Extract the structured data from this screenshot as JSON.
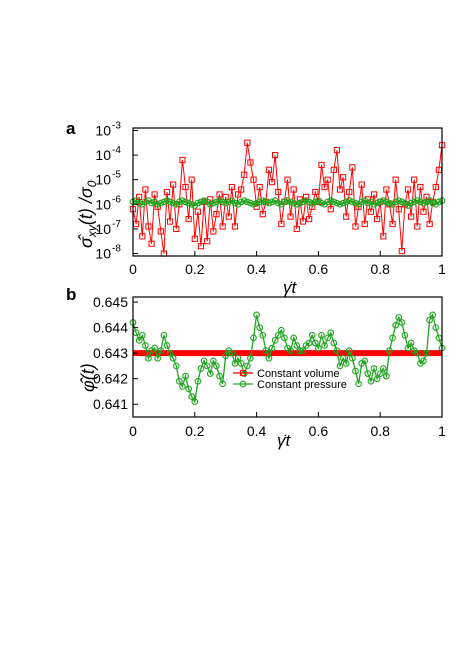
{
  "chart_data": [
    {
      "panel_label": "a",
      "type": "line",
      "xlabel": "γ̇t",
      "ylabel": "σ̂xy(t) /σ0",
      "ylabel_main": "σ̂",
      "ylabel_sub": "xy",
      "ylabel_mid": "(t) /σ",
      "ylabel_sub2": "0",
      "yscale": "log",
      "xlim": [
        0,
        1
      ],
      "ylim_exp": [
        -8.1,
        -2.9
      ],
      "xticks": [
        "0",
        "0.2",
        "0.4",
        "0.6",
        "0.8",
        "1"
      ],
      "ytick_base": "10",
      "yticks_exp": [
        "-8",
        "-7",
        "-6",
        "-5",
        "-4",
        "-3"
      ],
      "series": [
        {
          "name": "Constant volume",
          "color": "#ff0000",
          "marker": "square",
          "x": [
            0,
            0.01,
            0.02,
            0.03,
            0.04,
            0.05,
            0.06,
            0.07,
            0.08,
            0.09,
            0.1,
            0.11,
            0.12,
            0.13,
            0.14,
            0.15,
            0.16,
            0.17,
            0.18,
            0.19,
            0.2,
            0.21,
            0.22,
            0.23,
            0.24,
            0.25,
            0.26,
            0.27,
            0.28,
            0.29,
            0.3,
            0.31,
            0.32,
            0.33,
            0.34,
            0.35,
            0.36,
            0.37,
            0.38,
            0.39,
            0.4,
            0.41,
            0.42,
            0.43,
            0.44,
            0.45,
            0.46,
            0.47,
            0.48,
            0.49,
            0.5,
            0.51,
            0.52,
            0.53,
            0.54,
            0.55,
            0.56,
            0.57,
            0.58,
            0.59,
            0.6,
            0.61,
            0.62,
            0.63,
            0.64,
            0.65,
            0.66,
            0.67,
            0.68,
            0.69,
            0.7,
            0.71,
            0.72,
            0.73,
            0.74,
            0.75,
            0.76,
            0.77,
            0.78,
            0.79,
            0.8,
            0.81,
            0.82,
            0.83,
            0.84,
            0.85,
            0.86,
            0.87,
            0.88,
            0.89,
            0.9,
            0.91,
            0.92,
            0.93,
            0.94,
            0.95,
            0.96,
            0.97,
            0.98,
            0.99,
            1.0
          ],
          "y_log10": [
            -6.2,
            -6.8,
            -5.7,
            -7.3,
            -5.4,
            -6.9,
            -7.6,
            -5.6,
            -6.1,
            -7.1,
            -8.0,
            -5.5,
            -6.7,
            -5.2,
            -7.0,
            -6.0,
            -4.2,
            -5.3,
            -6.6,
            -5.0,
            -7.4,
            -6.3,
            -7.7,
            -5.9,
            -7.5,
            -5.8,
            -7.1,
            -6.4,
            -5.6,
            -6.9,
            -5.7,
            -6.5,
            -5.3,
            -6.9,
            -5.6,
            -5.4,
            -4.8,
            -3.5,
            -4.3,
            -5.0,
            -6.1,
            -5.3,
            -6.4,
            -5.9,
            -4.6,
            -5.1,
            -4.0,
            -5.5,
            -6.8,
            -5.9,
            -5.0,
            -6.5,
            -5.4,
            -7.0,
            -5.8,
            -6.7,
            -5.7,
            -6.6,
            -6.1,
            -5.5,
            -5.9,
            -4.4,
            -5.3,
            -5.0,
            -6.2,
            -4.6,
            -3.8,
            -5.4,
            -4.9,
            -6.5,
            -5.5,
            -4.5,
            -6.9,
            -6.1,
            -5.2,
            -6.8,
            -5.8,
            -6.3,
            -5.6,
            -6.6,
            -5.9,
            -7.3,
            -5.4,
            -6.0,
            -6.8,
            -5.0,
            -6.2,
            -7.9,
            -6.0,
            -5.4,
            -6.5,
            -5.0,
            -6.9,
            -5.3,
            -6.3,
            -5.7,
            -6.8,
            -5.9,
            -5.3,
            -4.6,
            -3.6
          ]
        },
        {
          "name": "Constant pressure",
          "color": "#1fa51f",
          "marker": "circle",
          "x": [
            0,
            0.01,
            0.02,
            0.03,
            0.04,
            0.05,
            0.06,
            0.07,
            0.08,
            0.09,
            0.1,
            0.11,
            0.12,
            0.13,
            0.14,
            0.15,
            0.16,
            0.17,
            0.18,
            0.19,
            0.2,
            0.21,
            0.22,
            0.23,
            0.24,
            0.25,
            0.26,
            0.27,
            0.28,
            0.29,
            0.3,
            0.31,
            0.32,
            0.33,
            0.34,
            0.35,
            0.36,
            0.37,
            0.38,
            0.39,
            0.4,
            0.41,
            0.42,
            0.43,
            0.44,
            0.45,
            0.46,
            0.47,
            0.48,
            0.49,
            0.5,
            0.51,
            0.52,
            0.53,
            0.54,
            0.55,
            0.56,
            0.57,
            0.58,
            0.59,
            0.6,
            0.61,
            0.62,
            0.63,
            0.64,
            0.65,
            0.66,
            0.67,
            0.68,
            0.69,
            0.7,
            0.71,
            0.72,
            0.73,
            0.74,
            0.75,
            0.76,
            0.77,
            0.78,
            0.79,
            0.8,
            0.81,
            0.82,
            0.83,
            0.84,
            0.85,
            0.86,
            0.87,
            0.88,
            0.89,
            0.9,
            0.91,
            0.92,
            0.93,
            0.94,
            0.95,
            0.96,
            0.97,
            0.98,
            0.99,
            1.0
          ],
          "y_log10": [
            -5.9,
            -5.85,
            -5.95,
            -6.0,
            -5.9,
            -5.85,
            -5.95,
            -5.9,
            -6.0,
            -5.95,
            -5.9,
            -5.85,
            -5.9,
            -5.95,
            -6.0,
            -5.9,
            -5.85,
            -5.9,
            -5.95,
            -6.0,
            -6.05,
            -5.95,
            -5.9,
            -5.85,
            -5.9,
            -6.0,
            -5.95,
            -5.9,
            -5.85,
            -5.9,
            -5.95,
            -5.9,
            -5.85,
            -5.95,
            -6.0,
            -5.9,
            -5.85,
            -5.9,
            -5.95,
            -6.0,
            -5.95,
            -5.9,
            -5.85,
            -5.9,
            -5.95,
            -5.9,
            -5.85,
            -5.95,
            -6.0,
            -5.9,
            -5.85,
            -5.9,
            -5.95,
            -6.0,
            -5.95,
            -5.9,
            -5.85,
            -5.9,
            -5.95,
            -5.9,
            -5.85,
            -5.95,
            -6.0,
            -5.9,
            -5.85,
            -5.9,
            -5.95,
            -6.0,
            -5.95,
            -5.9,
            -5.85,
            -5.9,
            -5.95,
            -6.0,
            -5.9,
            -5.85,
            -5.95,
            -5.9,
            -6.0,
            -5.95,
            -5.9,
            -5.85,
            -5.9,
            -5.95,
            -6.0,
            -5.9,
            -5.85,
            -5.9,
            -5.95,
            -6.05,
            -5.95,
            -5.9,
            -5.85,
            -5.9,
            -5.95,
            -5.9,
            -5.85,
            -5.95,
            -6.0,
            -5.9,
            -5.85
          ]
        }
      ]
    },
    {
      "panel_label": "b",
      "type": "line",
      "xlabel": "γ̇t",
      "ylabel": "φ̂(t)",
      "xlim": [
        0,
        1
      ],
      "ylim": [
        0.6405,
        0.6452
      ],
      "xticks": [
        "0",
        "0.2",
        "0.4",
        "0.6",
        "0.8",
        "1"
      ],
      "yticks": [
        "0.641",
        "0.642",
        "0.643",
        "0.644",
        "0.645"
      ],
      "legend": {
        "position": "center",
        "entries": [
          "Constant volume",
          "Constant pressure"
        ]
      },
      "series": [
        {
          "name": "Constant volume",
          "color": "#ff0000",
          "marker": "square",
          "x": [
            0,
            1
          ],
          "y": [
            0.643,
            0.643
          ]
        },
        {
          "name": "Constant pressure",
          "color": "#1fa51f",
          "marker": "circle",
          "x": [
            0,
            0.01,
            0.02,
            0.03,
            0.04,
            0.05,
            0.06,
            0.07,
            0.08,
            0.09,
            0.1,
            0.11,
            0.12,
            0.13,
            0.14,
            0.15,
            0.16,
            0.17,
            0.18,
            0.19,
            0.2,
            0.21,
            0.22,
            0.23,
            0.24,
            0.25,
            0.26,
            0.27,
            0.28,
            0.29,
            0.3,
            0.31,
            0.32,
            0.33,
            0.34,
            0.35,
            0.36,
            0.37,
            0.38,
            0.39,
            0.4,
            0.41,
            0.42,
            0.43,
            0.44,
            0.45,
            0.46,
            0.47,
            0.48,
            0.49,
            0.5,
            0.51,
            0.52,
            0.53,
            0.54,
            0.55,
            0.56,
            0.57,
            0.58,
            0.59,
            0.6,
            0.61,
            0.62,
            0.63,
            0.64,
            0.65,
            0.66,
            0.67,
            0.68,
            0.69,
            0.7,
            0.71,
            0.72,
            0.73,
            0.74,
            0.75,
            0.76,
            0.77,
            0.78,
            0.79,
            0.8,
            0.81,
            0.82,
            0.83,
            0.84,
            0.85,
            0.86,
            0.87,
            0.88,
            0.89,
            0.9,
            0.91,
            0.92,
            0.93,
            0.94,
            0.95,
            0.96,
            0.97,
            0.98,
            0.99,
            1.0
          ],
          "y": [
            0.6442,
            0.6438,
            0.6435,
            0.6437,
            0.6433,
            0.6428,
            0.6431,
            0.6432,
            0.6428,
            0.6431,
            0.6437,
            0.6433,
            0.643,
            0.6428,
            0.6425,
            0.6419,
            0.6417,
            0.6421,
            0.6416,
            0.6413,
            0.6411,
            0.6419,
            0.6424,
            0.6427,
            0.6425,
            0.6422,
            0.6427,
            0.6425,
            0.6421,
            0.6418,
            0.6429,
            0.6431,
            0.643,
            0.6426,
            0.6428,
            0.6426,
            0.6422,
            0.6425,
            0.6428,
            0.6436,
            0.6445,
            0.644,
            0.6437,
            0.6431,
            0.6428,
            0.6432,
            0.6435,
            0.6437,
            0.6439,
            0.6436,
            0.6432,
            0.6431,
            0.6436,
            0.6433,
            0.6431,
            0.6431,
            0.6433,
            0.6434,
            0.6437,
            0.6434,
            0.6432,
            0.6437,
            0.6433,
            0.6436,
            0.6438,
            0.6434,
            0.6431,
            0.6425,
            0.6428,
            0.6426,
            0.6431,
            0.6428,
            0.6423,
            0.6418,
            0.6426,
            0.6427,
            0.6422,
            0.6419,
            0.6424,
            0.642,
            0.6422,
            0.6424,
            0.6421,
            0.6431,
            0.6436,
            0.6441,
            0.6444,
            0.6442,
            0.6437,
            0.6432,
            0.6434,
            0.6431,
            0.643,
            0.6426,
            0.6427,
            0.643,
            0.6443,
            0.6445,
            0.644,
            0.6436,
            0.6432
          ]
        }
      ]
    }
  ]
}
